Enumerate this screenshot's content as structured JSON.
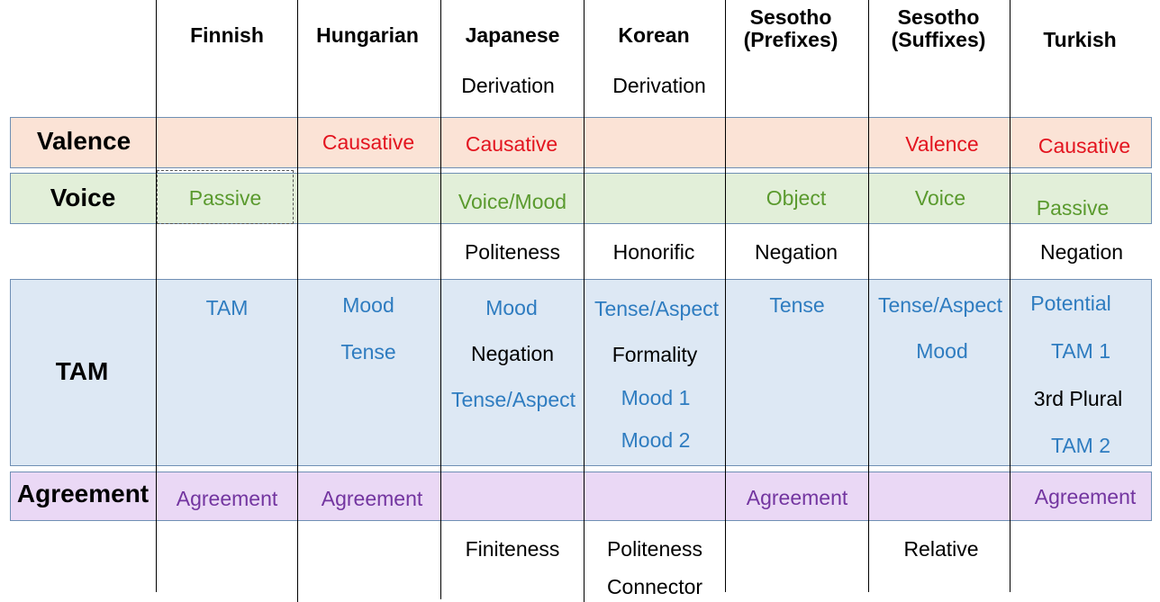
{
  "colors": {
    "valence_band": "#fbe3d6",
    "voice_band": "#e2efd9",
    "tam_band": "#dde8f4",
    "agreement_band": "#ead8f5",
    "red_text": "#e3141f",
    "green_text": "#5a9a2e",
    "blue_text": "#2e7cc0",
    "purple_text": "#7335a0",
    "black_text": "#000000"
  },
  "headers": {
    "finnish": "Finnish",
    "hungarian": "Hungarian",
    "japanese": "Japanese",
    "korean": "Korean",
    "sesotho_prefixes_1": "Sesotho",
    "sesotho_prefixes_2": "(Prefixes)",
    "sesotho_suffixes_1": "Sesotho",
    "sesotho_suffixes_2": "(Suffixes)",
    "turkish": "Turkish"
  },
  "rows": {
    "valence": "Valence",
    "voice": "Voice",
    "tam": "TAM",
    "agreement": "Agreement"
  },
  "cells": {
    "japanese_derivation": "Derivation",
    "korean_derivation": "Derivation",
    "hungarian_causative": "Causative",
    "japanese_causative": "Causative",
    "sesotho_suffixes_valence": "Valence",
    "turkish_causative": "Causative",
    "finnish_passive": "Passive",
    "japanese_voice_mood": "Voice/Mood",
    "sesotho_prefixes_object": "Object",
    "sesotho_suffixes_voice": "Voice",
    "turkish_passive": "Passive",
    "japanese_politeness": "Politeness",
    "korean_honorific": "Honorific",
    "sesotho_prefixes_negation": "Negation",
    "turkish_negation": "Negation",
    "finnish_tam": "TAM",
    "hungarian_mood": "Mood",
    "hungarian_tense": "Tense",
    "japanese_mood": "Mood",
    "japanese_negation": "Negation",
    "japanese_tense_aspect": "Tense/Aspect",
    "korean_tense_aspect": "Tense/Aspect",
    "korean_formality": "Formality",
    "korean_mood1": "Mood 1",
    "korean_mood2": "Mood 2",
    "sesotho_prefixes_tense": "Tense",
    "sesotho_suffixes_tense_aspect": "Tense/Aspect",
    "sesotho_suffixes_mood": "Mood",
    "turkish_potential": "Potential",
    "turkish_tam1": "TAM 1",
    "turkish_3rd_plural": "3rd Plural",
    "turkish_tam2": "TAM 2",
    "finnish_agreement": "Agreement",
    "hungarian_agreement": "Agreement",
    "sesotho_prefixes_agreement": "Agreement",
    "turkish_agreement": "Agreement",
    "japanese_finiteness": "Finiteness",
    "korean_politeness": "Politeness",
    "korean_connector": "Connector",
    "sesotho_suffixes_relative": "Relative"
  }
}
